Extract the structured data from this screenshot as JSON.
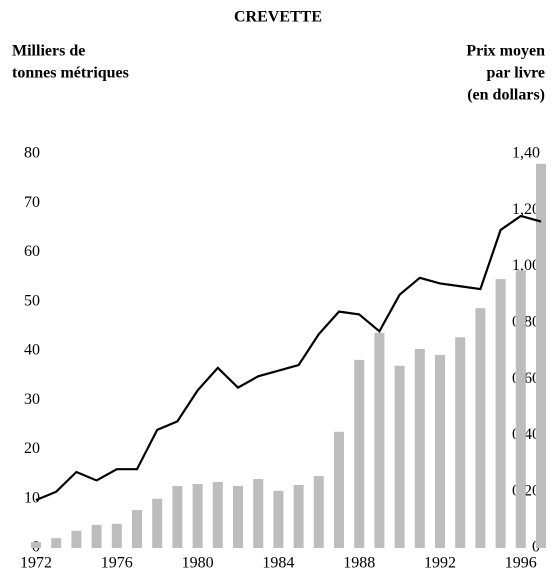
{
  "chart_data": {
    "type": "bar_line",
    "title": "CREVETTE",
    "y_label": [
      "Milliers de",
      "tonnes métriques"
    ],
    "y2_label": [
      "Prix moyen",
      "par livre",
      "(en dollars)"
    ],
    "categories": [
      1972,
      null,
      null,
      null,
      1976,
      null,
      null,
      null,
      1980,
      null,
      null,
      null,
      1984,
      null,
      null,
      null,
      1988,
      null,
      null,
      null,
      1992,
      null,
      null,
      null,
      1996,
      null
    ],
    "series": [
      {
        "type": "bar",
        "color": "#bdbdbd",
        "axis": "y",
        "values": [
          1.2,
          2,
          3.5,
          4.7,
          4.9,
          7.7,
          10,
          12.6,
          13,
          13.4,
          12.6,
          14,
          11.6,
          12.8,
          14.6,
          23.6,
          38.2,
          43.7,
          37,
          40.4,
          39.2,
          42.8,
          48.7,
          54.6,
          56.4,
          78
        ]
      },
      {
        "type": "line",
        "color": "#000000",
        "axis": "y2",
        "values": [
          0.17,
          0.2,
          0.27,
          0.24,
          0.28,
          0.28,
          0.42,
          0.45,
          0.56,
          0.64,
          0.57,
          0.61,
          0.63,
          0.65,
          0.76,
          0.84,
          0.83,
          0.77,
          0.9,
          0.96,
          0.94,
          0.93,
          0.92,
          1.13,
          1.18,
          1.16
        ]
      }
    ],
    "ylim": [
      0,
      80
    ],
    "yticks": [
      0,
      10,
      20,
      30,
      40,
      50,
      60,
      70,
      80
    ],
    "y2lim": [
      0,
      1.4
    ],
    "y2ticks": [
      0,
      {
        "value": 0.2,
        "label": "0,20"
      },
      {
        "value": 0.4,
        "label": "0,40"
      },
      {
        "value": 0.6,
        "label": "0,60"
      },
      {
        "value": 0.8,
        "label": "0,80"
      },
      {
        "value": 1.0,
        "label": "1,00"
      },
      {
        "value": 1.2,
        "label": "1,20"
      },
      {
        "value": 1.4,
        "label": "1,40"
      }
    ],
    "grid": false
  }
}
